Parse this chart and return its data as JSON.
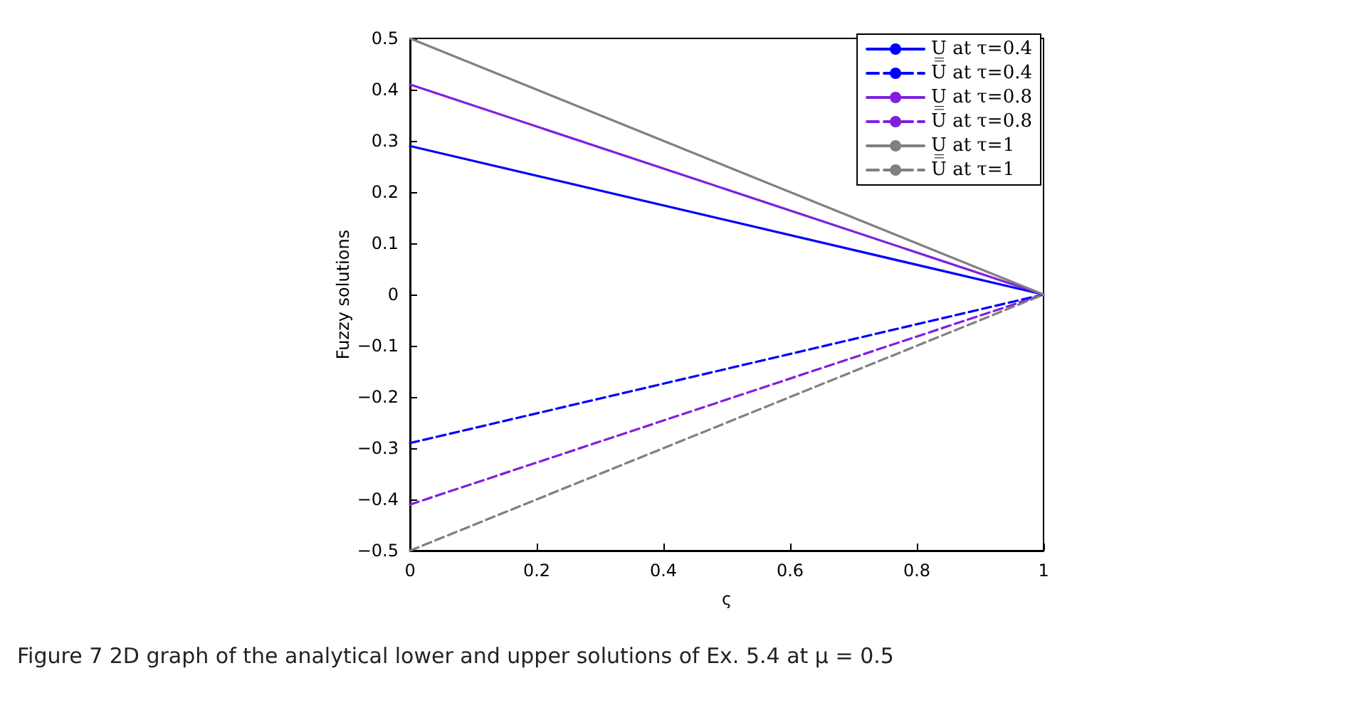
{
  "chart_data": {
    "type": "line",
    "xlabel": "ς",
    "ylabel": "Fuzzy solutions",
    "x": [
      0,
      1
    ],
    "series": [
      {
        "name": "U̲ at τ=0.4",
        "color": "#0000ff",
        "values": [
          0.29,
          0
        ],
        "line_style": "solid"
      },
      {
        "name": "U̅ at τ=0.4",
        "color": "#0000ff",
        "values": [
          -0.29,
          0
        ],
        "line_style": "dashed"
      },
      {
        "name": "U̲ at τ=0.8",
        "color": "#7f1fe0",
        "values": [
          0.41,
          0
        ],
        "line_style": "solid"
      },
      {
        "name": "U̅ at τ=0.8",
        "color": "#7f1fe0",
        "values": [
          -0.41,
          0
        ],
        "line_style": "dashed"
      },
      {
        "name": "U̲ at τ=1",
        "color": "#808080",
        "values": [
          0.5,
          0
        ],
        "line_style": "solid"
      },
      {
        "name": "U̅ at τ=1",
        "color": "#808080",
        "values": [
          -0.5,
          0
        ],
        "line_style": "dashed"
      }
    ],
    "xlim": [
      0,
      1
    ],
    "xticks": [
      0,
      0.2,
      0.4,
      0.6,
      0.8,
      1
    ],
    "ylim": [
      -0.5,
      0.5
    ],
    "yticks": [
      -0.5,
      -0.4,
      -0.3,
      -0.2,
      -0.1,
      0,
      0.1,
      0.2,
      0.3,
      0.4,
      0.5
    ],
    "grid": false,
    "legend": "top right",
    "marker": "none",
    "annotations": [
      "Figure 7  2D graph of the analytical lower and upper solutions of Ex. 5.4 at μ = 0.5"
    ]
  }
}
